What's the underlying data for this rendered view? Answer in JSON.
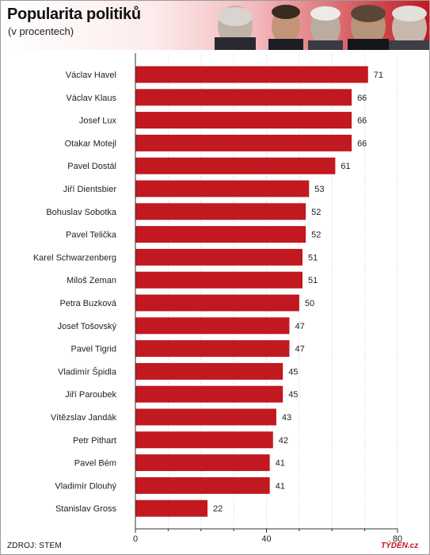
{
  "header": {
    "title": "Popularita politiků",
    "subtitle": "(v procentech)"
  },
  "footer": {
    "source": "ZDROJ: STEM",
    "brand": "TÝDEN.cz"
  },
  "colors": {
    "bar": "#c2181f",
    "grid": "#cfcfcf",
    "axis": "#333333"
  },
  "chart_data": {
    "type": "bar",
    "orientation": "horizontal",
    "title": "Popularita politiků",
    "subtitle": "(v procentech)",
    "xlim": [
      0,
      80
    ],
    "x_ticks": [
      0,
      40,
      80
    ],
    "grid": true,
    "categories": [
      "Václav Havel",
      "Václav Klaus",
      "Josef Lux",
      "Otakar Motejl",
      "Pavel Dostál",
      "Jiří Dientsbier",
      "Bohuslav Sobotka",
      "Pavel Telička",
      "Karel Schwarzenberg",
      "Miloš Zeman",
      "Petra Buzková",
      "Josef Tošovský",
      "Pavel Tigrid",
      "Vladimír Špidla",
      "Jiří Paroubek",
      "Vítězslav Jandák",
      "Petr Pithart",
      "Pavel Bém",
      "Vladimír Dlouhý",
      "Stanislav Gross"
    ],
    "values": [
      71,
      66,
      66,
      66,
      61,
      53,
      52,
      52,
      51,
      51,
      50,
      47,
      47,
      45,
      45,
      43,
      42,
      41,
      41,
      22
    ]
  }
}
